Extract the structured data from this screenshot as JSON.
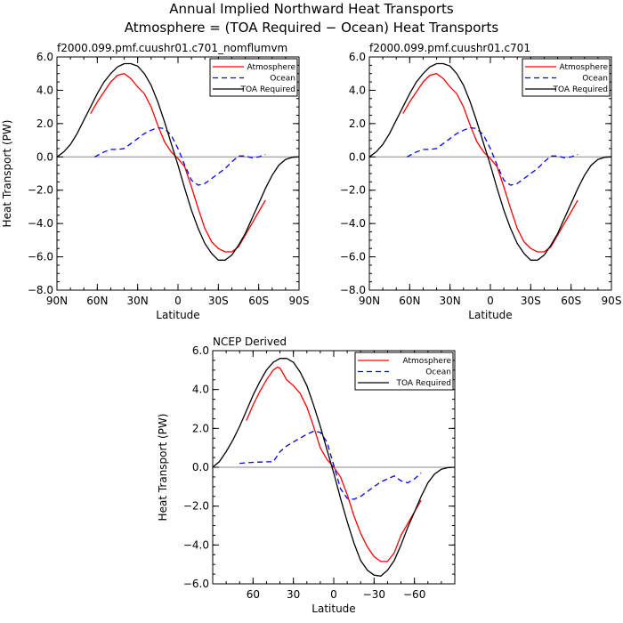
{
  "figure": {
    "title_line1": "Annual Implied Northward Heat Transports",
    "title_line2": "Atmosphere = (TOA Required − Ocean) Heat Transports"
  },
  "chart_data": [
    {
      "type": "line",
      "title": "f2000.099.pmf.cuushr01.c701_nomflumvm",
      "xlabel": "Latitude",
      "ylabel": "Heat Transport (PW)",
      "xlim": [
        90,
        -90
      ],
      "ylim": [
        -8.0,
        6.0
      ],
      "xticks": [
        90,
        60,
        30,
        0,
        -30,
        -60,
        -90
      ],
      "xtick_labels": [
        "90N",
        "60N",
        "30N",
        "0",
        "30S",
        "60S",
        "90S"
      ],
      "yticks": [
        -8,
        -6,
        -4,
        -2,
        0,
        2,
        4,
        6
      ],
      "ytick_labels": [
        "−8.0",
        "−6.0",
        "−4.0",
        "−2.0",
        "0.0",
        "2.0",
        "4.0",
        "6.0"
      ],
      "zero_line": true,
      "legend_position": "top-right",
      "series": [
        {
          "name": "Atmosphere",
          "color": "#ff0000",
          "dash": "solid",
          "x": [
            65,
            60,
            55,
            50,
            45,
            40,
            35,
            30,
            25,
            20,
            15,
            10,
            5,
            0,
            -5,
            -10,
            -15,
            -20,
            -25,
            -30,
            -35,
            -40,
            -45,
            -50,
            -55,
            -60,
            -65
          ],
          "y": [
            2.6,
            3.3,
            3.9,
            4.5,
            4.9,
            5.0,
            4.7,
            4.2,
            3.8,
            3.0,
            1.9,
            0.9,
            0.3,
            -0.1,
            -0.6,
            -1.8,
            -3.1,
            -4.3,
            -5.1,
            -5.5,
            -5.7,
            -5.7,
            -5.4,
            -4.7,
            -4.0,
            -3.3,
            -2.6
          ]
        },
        {
          "name": "Ocean",
          "color": "#0000ff",
          "dash": "dashed",
          "x": [
            62,
            55,
            50,
            45,
            40,
            35,
            30,
            25,
            20,
            15,
            10,
            5,
            0,
            -5,
            -10,
            -15,
            -20,
            -25,
            -30,
            -35,
            -40,
            -45,
            -50,
            -55,
            -60,
            -65
          ],
          "y": [
            0.0,
            0.3,
            0.45,
            0.45,
            0.5,
            0.8,
            1.1,
            1.4,
            1.6,
            1.75,
            1.7,
            1.3,
            0.5,
            -0.5,
            -1.4,
            -1.7,
            -1.6,
            -1.3,
            -1.0,
            -0.7,
            -0.3,
            0.05,
            0.05,
            -0.05,
            0.0,
            0.15
          ]
        },
        {
          "name": "TOA Required",
          "color": "#000000",
          "dash": "solid",
          "x": [
            90,
            85,
            80,
            75,
            70,
            65,
            60,
            55,
            50,
            45,
            40,
            35,
            30,
            25,
            20,
            15,
            10,
            5,
            0,
            -5,
            -10,
            -15,
            -20,
            -25,
            -30,
            -35,
            -40,
            -45,
            -50,
            -55,
            -60,
            -65,
            -70,
            -75,
            -80,
            -85,
            -90
          ],
          "y": [
            0.0,
            0.3,
            0.75,
            1.4,
            2.2,
            3.0,
            3.8,
            4.5,
            5.0,
            5.4,
            5.6,
            5.6,
            5.45,
            5.0,
            4.3,
            3.3,
            2.1,
            0.8,
            -0.5,
            -1.9,
            -3.2,
            -4.3,
            -5.2,
            -5.8,
            -6.2,
            -6.2,
            -5.9,
            -5.3,
            -4.6,
            -3.7,
            -2.8,
            -1.9,
            -1.1,
            -0.5,
            -0.15,
            -0.02,
            0.0
          ]
        }
      ]
    },
    {
      "type": "line",
      "title": "f2000.099.pmf.cuushr01.c701",
      "xlabel": "Latitude",
      "ylabel": "",
      "xlim": [
        90,
        -90
      ],
      "ylim": [
        -8.0,
        6.0
      ],
      "xticks": [
        90,
        60,
        30,
        0,
        -30,
        -60,
        -90
      ],
      "xtick_labels": [
        "90N",
        "60N",
        "30N",
        "0",
        "30S",
        "60S",
        "90S"
      ],
      "yticks": [
        -8,
        -6,
        -4,
        -2,
        0,
        2,
        4,
        6
      ],
      "ytick_labels": [
        "−8.0",
        "−6.0",
        "−4.0",
        "−2.0",
        "0.0",
        "2.0",
        "4.0",
        "6.0"
      ],
      "zero_line": true,
      "legend_position": "top-right",
      "series": [
        {
          "name": "Atmosphere",
          "color": "#ff0000",
          "dash": "solid",
          "x": [
            65,
            60,
            55,
            50,
            45,
            40,
            35,
            30,
            25,
            20,
            15,
            10,
            5,
            0,
            -5,
            -10,
            -15,
            -20,
            -25,
            -30,
            -35,
            -40,
            -45,
            -50,
            -55,
            -60,
            -65
          ],
          "y": [
            2.6,
            3.3,
            3.9,
            4.5,
            4.9,
            5.0,
            4.7,
            4.2,
            3.8,
            3.0,
            1.9,
            0.9,
            0.3,
            -0.1,
            -0.6,
            -1.8,
            -3.1,
            -4.3,
            -5.1,
            -5.5,
            -5.7,
            -5.7,
            -5.4,
            -4.7,
            -4.0,
            -3.3,
            -2.6
          ]
        },
        {
          "name": "Ocean",
          "color": "#0000ff",
          "dash": "dashed",
          "x": [
            62,
            55,
            50,
            45,
            40,
            35,
            30,
            25,
            20,
            15,
            10,
            5,
            0,
            -5,
            -10,
            -15,
            -20,
            -25,
            -30,
            -35,
            -40,
            -45,
            -50,
            -55,
            -60,
            -65
          ],
          "y": [
            0.0,
            0.3,
            0.45,
            0.45,
            0.5,
            0.8,
            1.1,
            1.4,
            1.6,
            1.75,
            1.7,
            1.3,
            0.5,
            -0.5,
            -1.4,
            -1.7,
            -1.6,
            -1.3,
            -1.0,
            -0.7,
            -0.3,
            0.05,
            0.05,
            -0.05,
            0.0,
            0.15
          ]
        },
        {
          "name": "TOA Required",
          "color": "#000000",
          "dash": "solid",
          "x": [
            90,
            85,
            80,
            75,
            70,
            65,
            60,
            55,
            50,
            45,
            40,
            35,
            30,
            25,
            20,
            15,
            10,
            5,
            0,
            -5,
            -10,
            -15,
            -20,
            -25,
            -30,
            -35,
            -40,
            -45,
            -50,
            -55,
            -60,
            -65,
            -70,
            -75,
            -80,
            -85,
            -90
          ],
          "y": [
            0.0,
            0.3,
            0.75,
            1.4,
            2.2,
            3.0,
            3.8,
            4.5,
            5.0,
            5.4,
            5.6,
            5.6,
            5.45,
            5.0,
            4.3,
            3.3,
            2.1,
            0.8,
            -0.5,
            -1.9,
            -3.2,
            -4.3,
            -5.2,
            -5.8,
            -6.2,
            -6.2,
            -5.9,
            -5.3,
            -4.6,
            -3.7,
            -2.8,
            -1.9,
            -1.1,
            -0.5,
            -0.15,
            -0.02,
            0.0
          ]
        }
      ]
    },
    {
      "type": "line",
      "title": "NCEP Derived",
      "xlabel": "Latitude",
      "ylabel": "Heat Transport (PW)",
      "xlim": [
        90,
        -90
      ],
      "ylim": [
        -6.0,
        6.0
      ],
      "xticks": [
        60,
        30,
        0,
        -30,
        -60
      ],
      "xtick_labels": [
        "60",
        "30",
        "0",
        "−30",
        "−60"
      ],
      "yticks": [
        -6,
        -4,
        -2,
        0,
        2,
        4,
        6
      ],
      "ytick_labels": [
        "−6.0",
        "−4.0",
        "−2.0",
        "0.0",
        "2.0",
        "4.0",
        "6.0"
      ],
      "zero_line": true,
      "legend_position": "top-right",
      "series": [
        {
          "name": "Atmosphere",
          "color": "#ff0000",
          "dash": "solid",
          "x": [
            65,
            60,
            55,
            50,
            45,
            42,
            40,
            35,
            30,
            25,
            20,
            15,
            10,
            5,
            0,
            -5,
            -10,
            -15,
            -20,
            -25,
            -30,
            -35,
            -40,
            -45,
            -50,
            -55,
            -60,
            -65
          ],
          "y": [
            2.4,
            3.2,
            3.9,
            4.5,
            5.0,
            5.15,
            5.1,
            4.5,
            4.2,
            3.8,
            3.1,
            2.1,
            1.0,
            0.4,
            0.0,
            -0.5,
            -1.4,
            -2.5,
            -3.4,
            -4.1,
            -4.6,
            -4.85,
            -4.85,
            -4.4,
            -3.5,
            -2.9,
            -2.3,
            -1.7
          ]
        },
        {
          "name": "Ocean",
          "color": "#0000ff",
          "dash": "dashed",
          "x": [
            70,
            60,
            50,
            45,
            40,
            35,
            30,
            25,
            20,
            15,
            10,
            5,
            0,
            -5,
            -10,
            -15,
            -20,
            -25,
            -30,
            -35,
            -40,
            -45,
            -50,
            -55,
            -60,
            -65
          ],
          "y": [
            0.2,
            0.25,
            0.28,
            0.28,
            0.8,
            1.1,
            1.3,
            1.5,
            1.7,
            1.85,
            1.8,
            1.3,
            0.1,
            -1.1,
            -1.6,
            -1.65,
            -1.5,
            -1.25,
            -1.0,
            -0.75,
            -0.6,
            -0.45,
            -0.7,
            -0.8,
            -0.6,
            -0.3
          ]
        },
        {
          "name": "TOA Required",
          "color": "#000000",
          "dash": "solid",
          "x": [
            90,
            85,
            80,
            75,
            70,
            65,
            60,
            55,
            50,
            45,
            40,
            35,
            30,
            25,
            20,
            15,
            10,
            5,
            0,
            -5,
            -10,
            -15,
            -20,
            -25,
            -30,
            -35,
            -40,
            -45,
            -50,
            -55,
            -60,
            -65,
            -70,
            -75,
            -80,
            -85,
            -90
          ],
          "y": [
            0.0,
            0.3,
            0.8,
            1.4,
            2.1,
            2.9,
            3.7,
            4.4,
            5.0,
            5.4,
            5.6,
            5.6,
            5.4,
            4.9,
            4.2,
            3.2,
            2.1,
            0.9,
            -0.3,
            -1.6,
            -2.8,
            -3.9,
            -4.8,
            -5.3,
            -5.55,
            -5.6,
            -5.3,
            -4.8,
            -4.0,
            -3.1,
            -2.3,
            -1.5,
            -0.8,
            -0.35,
            -0.1,
            -0.02,
            0.0
          ]
        }
      ]
    }
  ]
}
